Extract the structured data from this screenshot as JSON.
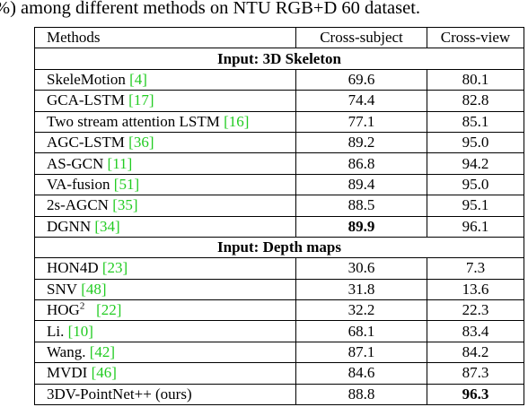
{
  "caption": "%) among different methods on NTU RGB+D 60 dataset.",
  "table": {
    "header": [
      "Methods",
      "Cross-subject",
      "Cross-view"
    ],
    "sections": [
      {
        "title": "Input: 3D Skeleton",
        "rows": [
          {
            "method": "SkeleMotion",
            "cite": "[4]",
            "cross_subject": "69.6",
            "cross_view": "80.1"
          },
          {
            "method": "GCA-LSTM",
            "cite": "[17]",
            "cross_subject": "74.4",
            "cross_view": "82.8"
          },
          {
            "method": "Two stream attention LSTM",
            "cite": "[16]",
            "cross_subject": "77.1",
            "cross_view": "85.1"
          },
          {
            "method": "AGC-LSTM",
            "cite": "[36]",
            "cross_subject": "89.2",
            "cross_view": "95.0"
          },
          {
            "method": "AS-GCN",
            "cite": "[11]",
            "cross_subject": "86.8",
            "cross_view": "94.2"
          },
          {
            "method": "VA-fusion",
            "cite": "[51]",
            "cross_subject": "89.4",
            "cross_view": "95.0"
          },
          {
            "method": "2s-AGCN",
            "cite": "[35]",
            "cross_subject": "88.5",
            "cross_view": "95.1"
          },
          {
            "method": "DGNN",
            "cite": "[34]",
            "cross_subject": "89.9",
            "cross_view": "96.1",
            "bold": [
              "cross_subject"
            ]
          }
        ]
      },
      {
        "title": "Input: Depth maps",
        "rows": [
          {
            "method": "HON4D",
            "cite": "[23]",
            "cross_subject": "30.6",
            "cross_view": "7.3"
          },
          {
            "method": "SNV",
            "cite": "[48]",
            "cross_subject": "31.8",
            "cross_view": "13.6"
          },
          {
            "method": "HOG",
            "sup": "2",
            "cite": "[22]",
            "cross_subject": "32.2",
            "cross_view": "22.3"
          },
          {
            "method": "Li.",
            "cite": "[10]",
            "cross_subject": "68.1",
            "cross_view": "83.4"
          },
          {
            "method": "Wang.",
            "cite": "[42]",
            "cross_subject": "87.1",
            "cross_view": "84.2"
          },
          {
            "method": "MVDI",
            "cite": "[46]",
            "cross_subject": "84.6",
            "cross_view": "87.3"
          },
          {
            "method": "3DV-PointNet++ (ours)",
            "cross_subject": "88.8",
            "cross_view": "96.3",
            "bold": [
              "cross_view"
            ]
          }
        ]
      }
    ]
  }
}
